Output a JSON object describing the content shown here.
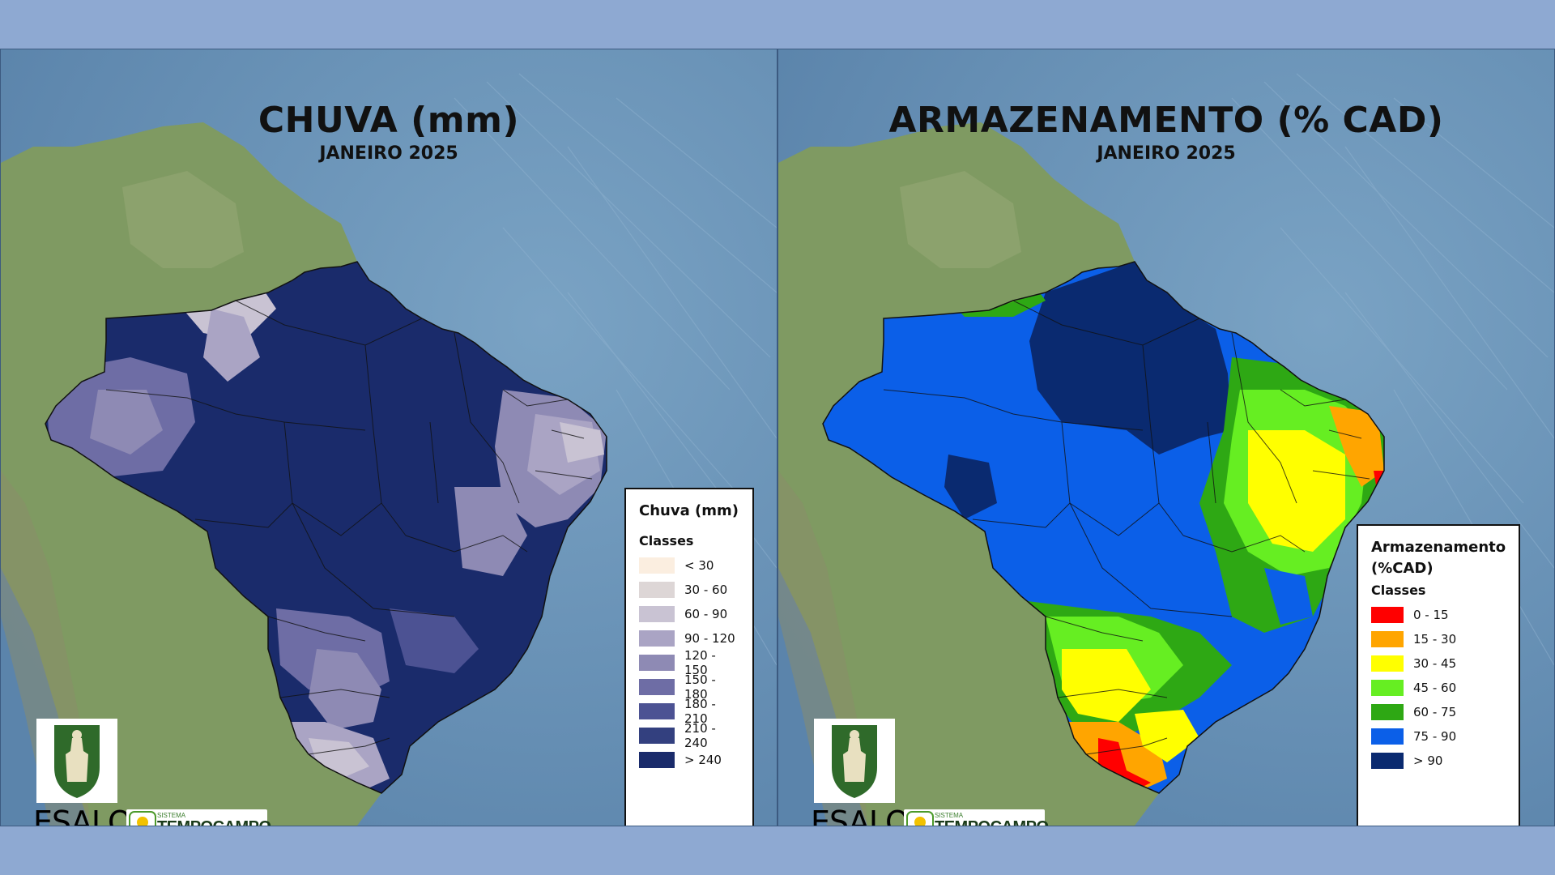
{
  "left_panel": {
    "title": "CHUVA (mm)",
    "subtitle": "JANEIRO 2025",
    "legend": {
      "title": "Chuva (mm)",
      "classes_label": "Classes",
      "items": [
        {
          "label": "< 30",
          "color": "#fbeee0"
        },
        {
          "label": "30 - 60",
          "color": "#ddd6d6"
        },
        {
          "label": "60 - 90",
          "color": "#c9c3d3"
        },
        {
          "label": "90 - 120",
          "color": "#aaa4c4"
        },
        {
          "label": "120 - 150",
          "color": "#8e8ab4"
        },
        {
          "label": "150 - 180",
          "color": "#6e6da5"
        },
        {
          "label": "180 - 210",
          "color": "#4c5293"
        },
        {
          "label": "210 - 240",
          "color": "#33407f"
        },
        {
          "label": "> 240",
          "color": "#1a2b6b"
        }
      ]
    }
  },
  "right_panel": {
    "title": "ARMAZENAMENTO (% CAD)",
    "subtitle": "JANEIRO 2025",
    "legend": {
      "title": "Armazenamento (%CAD)",
      "classes_label": "Classes",
      "items": [
        {
          "label": "0 - 15",
          "color": "#ff0000"
        },
        {
          "label": "15 - 30",
          "color": "#ffa500"
        },
        {
          "label": "30 - 45",
          "color": "#ffff00"
        },
        {
          "label": "45 - 60",
          "color": "#66ee22"
        },
        {
          "label": "60 - 75",
          "color": "#2ea814"
        },
        {
          "label": "75 - 90",
          "color": "#0b5fe8"
        },
        {
          "label": "> 90",
          "color": "#0a2a70"
        }
      ]
    }
  },
  "logos": {
    "esalq": "ESALQ",
    "tempocampo_small": "SISTEMA",
    "tempocampo_big": "TEMPOCAMPO"
  },
  "colors": {
    "background": "#8ea9d2",
    "ocean": "#6e95b8",
    "land": "#7f9a62"
  }
}
